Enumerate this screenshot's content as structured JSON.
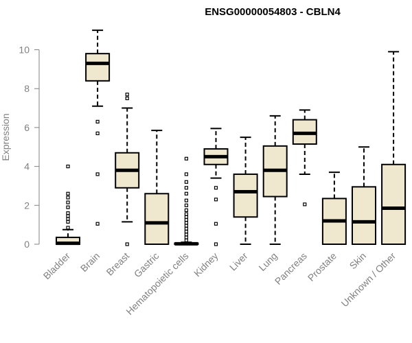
{
  "chart_data": {
    "type": "boxplot",
    "title": "ENSG00000054803 - CBLN4",
    "ylabel": "Expression",
    "xlabel": "",
    "ylim": [
      0,
      11
    ],
    "yticks": [
      0,
      2,
      4,
      6,
      8,
      10
    ],
    "grid": false,
    "colors": {
      "box_fill": "#efe8cf",
      "box_stroke": "#000000",
      "axis": "#808080"
    },
    "categories": [
      "Bladder",
      "Brain",
      "Breast",
      "Gastric",
      "Hematopoietic cells",
      "Kidney",
      "Liver",
      "Lung",
      "Pancreas",
      "Prostate",
      "Skin",
      "Unknown / Other"
    ],
    "boxes": [
      {
        "category": "Bladder",
        "whisker_low": 0,
        "q1": 0,
        "median": 0.05,
        "q3": 0.35,
        "whisker_high": 0.75,
        "outliers": [
          0.85,
          1.15,
          1.3,
          1.45,
          1.6,
          1.9,
          2.15,
          2.4,
          2.6,
          4.0
        ]
      },
      {
        "category": "Brain",
        "whisker_low": 7.1,
        "q1": 8.4,
        "median": 9.3,
        "q3": 9.8,
        "whisker_high": 11.0,
        "outliers": [
          1.05,
          3.6,
          5.7,
          6.3
        ]
      },
      {
        "category": "Breast",
        "whisker_low": 1.15,
        "q1": 2.9,
        "median": 3.8,
        "q3": 4.7,
        "whisker_high": 7.0,
        "outliers": [
          0,
          7.5,
          7.7
        ]
      },
      {
        "category": "Gastric",
        "whisker_low": 0,
        "q1": 0,
        "median": 1.1,
        "q3": 2.6,
        "whisker_high": 5.85,
        "outliers": []
      },
      {
        "category": "Hematopoietic cells",
        "whisker_low": 0,
        "q1": 0,
        "median": 0.02,
        "q3": 0.05,
        "whisker_high": 0.1,
        "outliers": [
          0.2,
          0.35,
          0.5,
          0.65,
          0.8,
          0.95,
          1.1,
          1.25,
          1.4,
          1.55,
          1.75,
          2.0,
          2.25,
          2.6,
          2.9,
          3.2,
          3.6,
          4.4
        ]
      },
      {
        "category": "Kidney",
        "whisker_low": 3.4,
        "q1": 4.1,
        "median": 4.5,
        "q3": 4.9,
        "whisker_high": 5.95,
        "outliers": [
          0,
          1.05,
          2.3,
          2.9
        ]
      },
      {
        "category": "Liver",
        "whisker_low": 0,
        "q1": 1.4,
        "median": 2.7,
        "q3": 3.6,
        "whisker_high": 5.5,
        "outliers": []
      },
      {
        "category": "Lung",
        "whisker_low": 0,
        "q1": 2.45,
        "median": 3.8,
        "q3": 5.05,
        "whisker_high": 6.6,
        "outliers": []
      },
      {
        "category": "Pancreas",
        "whisker_low": 3.6,
        "q1": 5.15,
        "median": 5.7,
        "q3": 6.4,
        "whisker_high": 6.9,
        "outliers": [
          2.05
        ]
      },
      {
        "category": "Prostate",
        "whisker_low": 0,
        "q1": 0,
        "median": 1.2,
        "q3": 2.35,
        "whisker_high": 3.7,
        "outliers": []
      },
      {
        "category": "Skin",
        "whisker_low": 0,
        "q1": 0,
        "median": 1.15,
        "q3": 2.95,
        "whisker_high": 5.0,
        "outliers": []
      },
      {
        "category": "Unknown / Other",
        "whisker_low": 0,
        "q1": 0,
        "median": 1.85,
        "q3": 4.1,
        "whisker_high": 9.9,
        "outliers": []
      }
    ]
  }
}
